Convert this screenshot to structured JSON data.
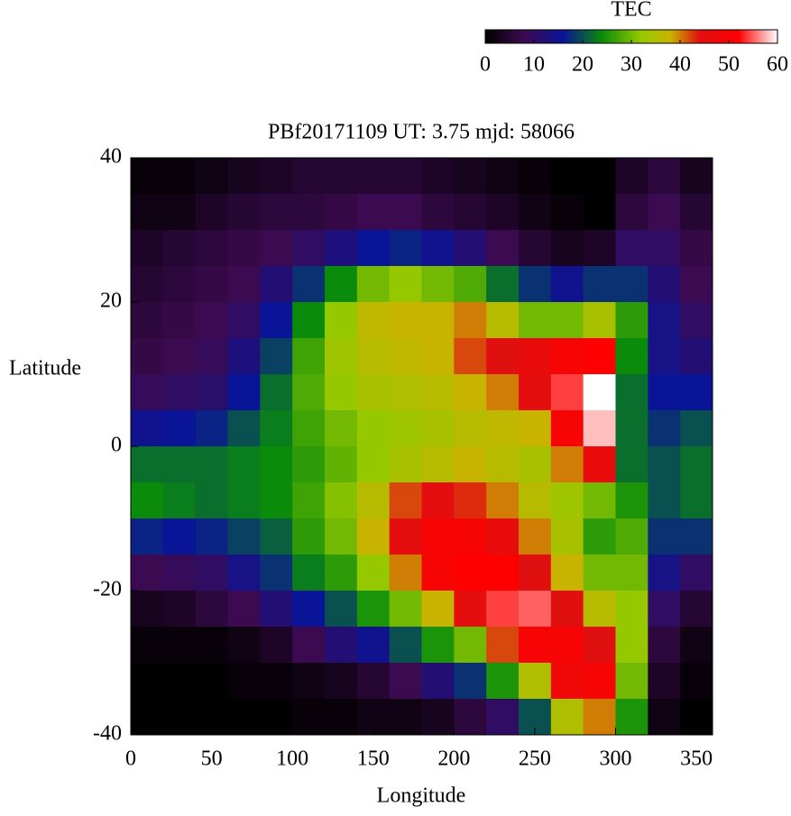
{
  "chart_data": {
    "type": "heatmap",
    "title": "PBf20171109  UT: 3.75  mjd: 58066",
    "x_label": "Longitude",
    "y_label": "Latitude",
    "xlim": [
      0,
      360
    ],
    "ylim": [
      -40,
      40
    ],
    "xticks": [
      0,
      50,
      100,
      150,
      200,
      250,
      300,
      350
    ],
    "yticks": [
      -40,
      -20,
      0,
      20,
      40
    ],
    "x": [
      10,
      30,
      50,
      70,
      90,
      110,
      130,
      150,
      170,
      190,
      210,
      230,
      250,
      270,
      290,
      310,
      330,
      350
    ],
    "y": [
      37.5,
      32.5,
      27.5,
      22.5,
      17.5,
      12.5,
      7.5,
      2.5,
      -2.5,
      -7.5,
      -12.5,
      -17.5,
      -22.5,
      -27.5,
      -32.5,
      -37.5
    ],
    "values": [
      [
        1,
        2,
        4,
        5,
        6,
        7,
        9,
        15,
        22,
        24,
        17,
        8,
        3,
        1,
        0,
        0
      ],
      [
        1,
        2,
        5,
        6,
        7,
        8,
        10,
        16,
        22,
        23,
        16,
        9,
        4,
        1,
        0,
        0
      ],
      [
        2,
        4,
        6,
        7,
        8,
        9,
        11,
        17,
        22,
        22,
        17,
        10,
        6,
        1,
        0,
        0
      ],
      [
        3,
        5,
        7,
        8,
        10,
        13,
        16,
        20,
        23,
        23,
        19,
        14,
        8,
        2,
        1,
        0
      ],
      [
        4,
        6,
        8,
        12,
        16,
        19,
        22,
        23,
        24,
        24,
        21,
        18,
        12,
        4,
        1,
        0
      ],
      [
        5,
        6,
        10,
        18,
        24,
        27,
        28,
        27,
        26,
        27,
        26,
        23,
        16,
        8,
        2,
        1
      ],
      [
        5,
        7,
        13,
        24,
        32,
        33,
        32,
        30,
        29,
        31,
        30,
        26,
        20,
        12,
        3,
        1
      ],
      [
        5,
        8,
        16,
        30,
        37,
        36,
        34,
        32,
        32,
        36,
        38,
        32,
        25,
        15,
        5,
        2
      ],
      [
        5,
        8,
        17,
        32,
        38,
        37,
        35,
        33,
        34,
        42,
        45,
        40,
        30,
        20,
        8,
        2
      ],
      [
        4,
        6,
        15,
        30,
        38,
        38,
        36,
        34,
        36,
        45,
        50,
        50,
        38,
        25,
        12,
        3
      ],
      [
        3,
        5,
        12,
        28,
        40,
        42,
        38,
        36,
        38,
        43,
        50,
        52,
        45,
        30,
        18,
        6
      ],
      [
        2,
        4,
        8,
        22,
        36,
        44,
        40,
        37,
        36,
        40,
        46,
        52,
        54,
        42,
        25,
        10
      ],
      [
        1,
        2,
        5,
        18,
        30,
        46,
        45,
        38,
        34,
        36,
        40,
        44,
        55,
        50,
        35,
        20
      ],
      [
        0,
        1,
        3,
        15,
        30,
        50,
        54,
        50,
        40,
        33,
        34,
        38,
        44,
        50,
        48,
        35
      ],
      [
        0,
        0,
        4,
        18,
        34,
        52,
        60,
        58,
        46,
        30,
        26,
        30,
        36,
        44,
        50,
        40
      ],
      [
        4,
        6,
        10,
        18,
        26,
        24,
        22,
        22,
        22,
        25,
        28,
        30,
        32,
        32,
        30,
        25
      ],
      [
        6,
        8,
        10,
        12,
        14,
        14,
        16,
        18,
        20,
        20,
        18,
        14,
        10,
        6,
        4,
        2
      ],
      [
        3,
        5,
        7,
        8,
        10,
        12,
        16,
        20,
        22,
        22,
        18,
        10,
        5,
        2,
        1,
        0
      ]
    ],
    "colorbar": {
      "label": "TEC",
      "lim": [
        0,
        60
      ],
      "ticks": [
        0,
        10,
        20,
        30,
        40,
        50,
        60
      ]
    },
    "colormap": [
      {
        "at": 0,
        "color": "#000000"
      },
      {
        "at": 8,
        "color": "#3c0a50"
      },
      {
        "at": 16,
        "color": "#0a1496"
      },
      {
        "at": 24,
        "color": "#0a8c0a"
      },
      {
        "at": 32,
        "color": "#96c800"
      },
      {
        "at": 38,
        "color": "#c8b400"
      },
      {
        "at": 44,
        "color": "#e01010"
      },
      {
        "at": 52,
        "color": "#ff0000"
      },
      {
        "at": 60,
        "color": "#ffffff"
      }
    ]
  }
}
